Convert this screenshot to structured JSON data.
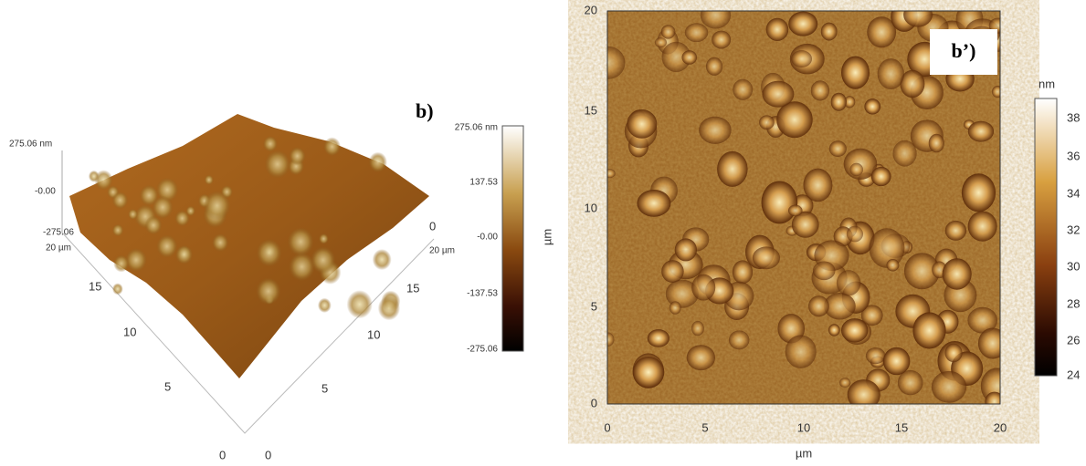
{
  "left_panel": {
    "label": "b)",
    "z_axis_labels": [
      "275.06 nm",
      "-0.00",
      "-275.06"
    ],
    "y_axis": {
      "start": "20 µm",
      "ticks": [
        "15",
        "10",
        "5",
        "0"
      ]
    },
    "x_axis": {
      "start": "0",
      "end": "20 µm",
      "ticks": [
        "15",
        "10",
        "5",
        "0"
      ]
    }
  },
  "colorbar_left": {
    "unit": "µm",
    "ticks": [
      "275.06 nm",
      "137.53",
      "-0.00",
      "-137.53",
      "-275.06"
    ]
  },
  "right_panel": {
    "label": "b’)",
    "y_ticks": [
      "20",
      "15",
      "10",
      "5",
      "0"
    ],
    "x_ticks": [
      "0",
      "5",
      "10",
      "15",
      "20"
    ],
    "x_label": "µm"
  },
  "colorbar_right": {
    "unit": "nm",
    "ticks": [
      "38",
      "36",
      "34",
      "32",
      "30",
      "28",
      "26",
      "24"
    ]
  }
}
